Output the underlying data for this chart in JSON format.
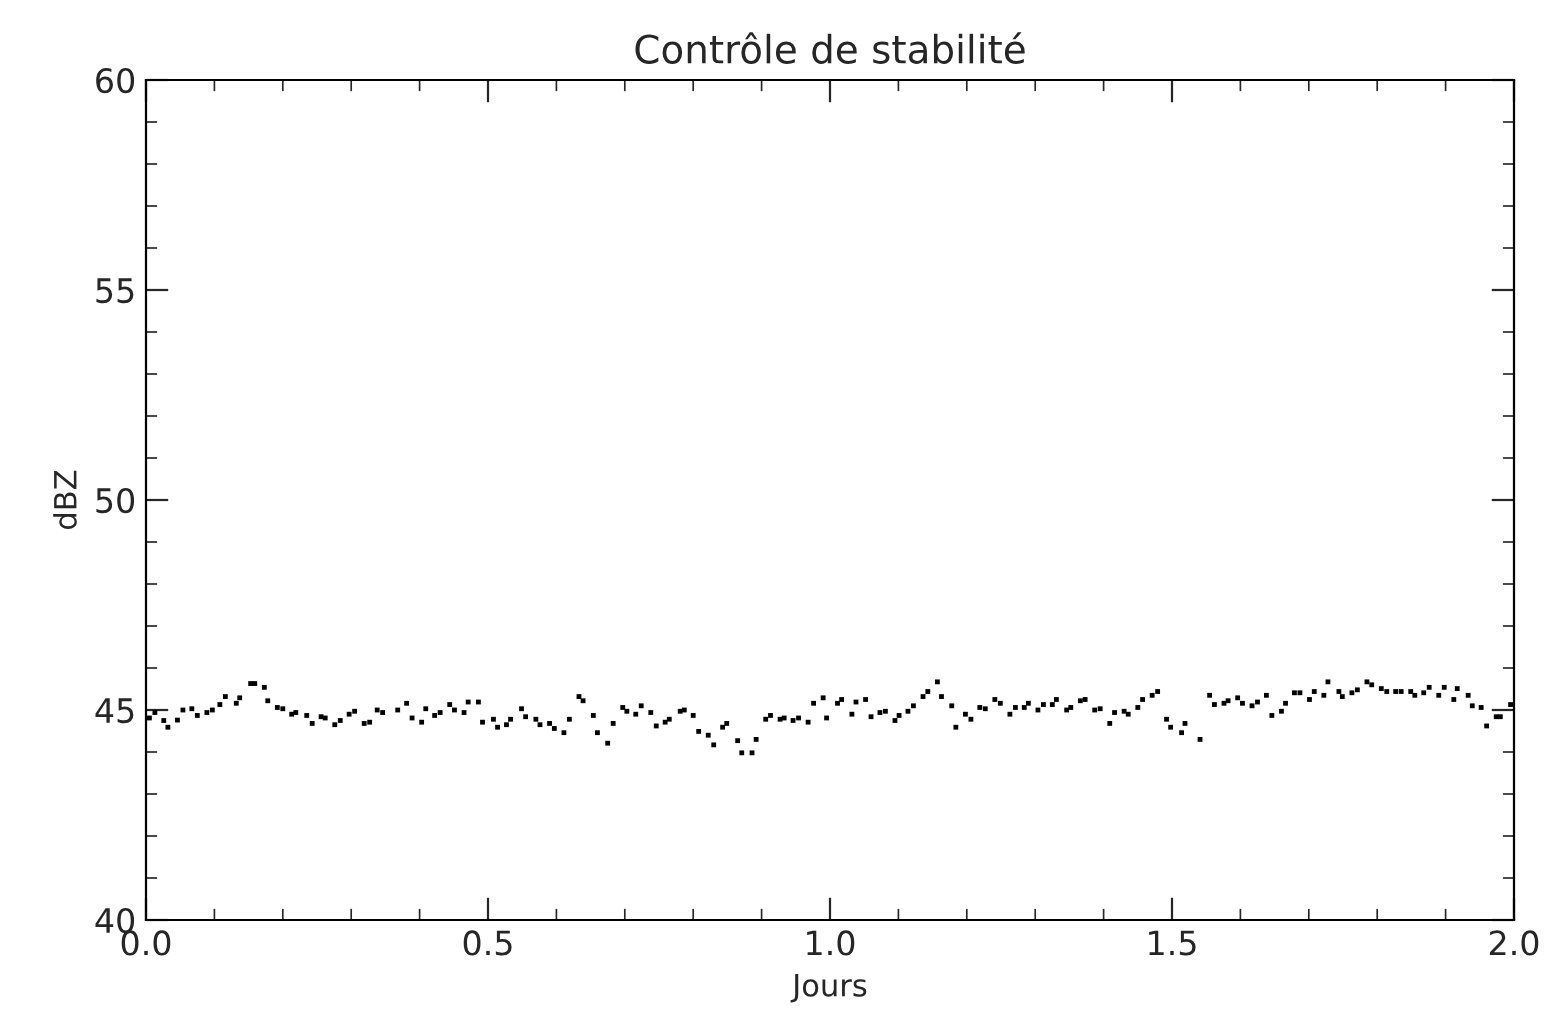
{
  "chart_data": {
    "type": "scatter",
    "title": "Contrôle de stabilité",
    "xlabel": "Jours",
    "ylabel": "dBZ",
    "xlim": [
      0,
      2
    ],
    "ylim": [
      40,
      60
    ],
    "xticks": [
      {
        "value": 0,
        "label": "0.0"
      },
      {
        "value": 0.5,
        "label": "0.5"
      },
      {
        "value": 1,
        "label": "1.0"
      },
      {
        "value": 1.5,
        "label": "1.5"
      },
      {
        "value": 2,
        "label": "2.0"
      }
    ],
    "yticks": [
      40,
      45,
      50,
      55,
      60
    ],
    "grid": false,
    "legend": false,
    "marker": "square",
    "series": [
      {
        "color": "#000000",
        "x": [
          0.005,
          0.013,
          0.026,
          0.032,
          0.046,
          0.054,
          0.067,
          0.075,
          0.089,
          0.097,
          0.108,
          0.116,
          0.132,
          0.137,
          0.153,
          0.159,
          0.173,
          0.178,
          0.192,
          0.2,
          0.213,
          0.219,
          0.235,
          0.243,
          0.256,
          0.262,
          0.276,
          0.284,
          0.297,
          0.305,
          0.319,
          0.327,
          0.338,
          0.346,
          0.368,
          0.381,
          0.389,
          0.403,
          0.409,
          0.422,
          0.43,
          0.444,
          0.451,
          0.465,
          0.471,
          0.486,
          0.492,
          0.508,
          0.514,
          0.527,
          0.533,
          0.549,
          0.555,
          0.57,
          0.576,
          0.59,
          0.597,
          0.611,
          0.619,
          0.633,
          0.639,
          0.654,
          0.66,
          0.675,
          0.683,
          0.697,
          0.703,
          0.716,
          0.724,
          0.738,
          0.746,
          0.759,
          0.765,
          0.781,
          0.787,
          0.8,
          0.808,
          0.822,
          0.83,
          0.843,
          0.849,
          0.865,
          0.871,
          0.886,
          0.892,
          0.906,
          0.913,
          0.927,
          0.933,
          0.946,
          0.954,
          0.968,
          0.976,
          0.99,
          0.995,
          1.011,
          1.017,
          1.032,
          1.038,
          1.052,
          1.06,
          1.073,
          1.081,
          1.095,
          1.101,
          1.114,
          1.122,
          1.136,
          1.143,
          1.157,
          1.163,
          1.178,
          1.184,
          1.198,
          1.206,
          1.219,
          1.227,
          1.241,
          1.249,
          1.263,
          1.271,
          1.284,
          1.29,
          1.304,
          1.312,
          1.325,
          1.331,
          1.346,
          1.352,
          1.366,
          1.373,
          1.387,
          1.395,
          1.409,
          1.416,
          1.43,
          1.436,
          1.45,
          1.457,
          1.471,
          1.479,
          1.492,
          1.498,
          1.514,
          1.519,
          1.541,
          1.555,
          1.562,
          1.576,
          1.582,
          1.596,
          1.603,
          1.617,
          1.625,
          1.638,
          1.646,
          1.66,
          1.666,
          1.679,
          1.687,
          1.701,
          1.708,
          1.722,
          1.728,
          1.744,
          1.749,
          1.763,
          1.771,
          1.785,
          1.792,
          1.806,
          1.814,
          1.827,
          1.835,
          1.849,
          1.855,
          1.868,
          1.876,
          1.89,
          1.898,
          1.912,
          1.917,
          1.933,
          1.939,
          1.952,
          1.96,
          1.974,
          1.98,
          1.995
        ],
        "values": [
          44.81,
          44.94,
          44.75,
          44.59,
          44.76,
          45.0,
          45.03,
          44.87,
          44.94,
          45.0,
          45.13,
          45.32,
          45.16,
          45.29,
          45.63,
          45.63,
          45.54,
          45.22,
          45.06,
          45.03,
          44.9,
          44.94,
          44.87,
          44.68,
          44.84,
          44.81,
          44.65,
          44.75,
          44.9,
          44.97,
          44.68,
          44.71,
          45.0,
          44.94,
          45.0,
          45.16,
          44.81,
          44.71,
          45.03,
          44.87,
          44.94,
          45.13,
          45.0,
          44.94,
          45.19,
          45.19,
          44.71,
          44.78,
          44.59,
          44.65,
          44.78,
          45.03,
          44.84,
          44.78,
          44.65,
          44.68,
          44.56,
          44.46,
          44.78,
          45.32,
          45.22,
          44.87,
          44.46,
          44.21,
          44.68,
          45.06,
          44.97,
          44.9,
          45.1,
          44.94,
          44.62,
          44.71,
          44.78,
          44.97,
          45.0,
          44.87,
          44.49,
          44.4,
          44.17,
          44.59,
          44.68,
          44.27,
          43.98,
          43.98,
          44.3,
          44.78,
          44.87,
          44.78,
          44.81,
          44.75,
          44.81,
          44.71,
          45.16,
          45.29,
          44.81,
          45.16,
          45.25,
          44.9,
          45.19,
          45.25,
          44.84,
          44.94,
          44.97,
          44.75,
          44.87,
          44.97,
          45.1,
          45.32,
          45.44,
          45.67,
          45.32,
          45.1,
          44.59,
          44.9,
          44.78,
          45.06,
          45.03,
          45.25,
          45.16,
          44.9,
          45.06,
          45.06,
          45.16,
          45.0,
          45.13,
          45.13,
          45.25,
          45.0,
          45.06,
          45.22,
          45.25,
          45.0,
          45.03,
          44.68,
          44.94,
          44.97,
          44.9,
          45.06,
          45.25,
          45.35,
          45.44,
          44.78,
          44.59,
          44.46,
          44.68,
          44.3,
          45.35,
          45.13,
          45.16,
          45.22,
          45.29,
          45.16,
          45.1,
          45.19,
          45.35,
          44.87,
          44.97,
          45.16,
          45.41,
          45.41,
          45.25,
          45.44,
          45.35,
          45.67,
          45.44,
          45.32,
          45.41,
          45.48,
          45.67,
          45.6,
          45.51,
          45.44,
          45.44,
          45.44,
          45.44,
          45.35,
          45.41,
          45.54,
          45.35,
          45.54,
          45.25,
          45.51,
          45.35,
          45.1,
          45.06,
          44.62,
          44.84,
          44.84,
          45.13
        ]
      }
    ]
  }
}
